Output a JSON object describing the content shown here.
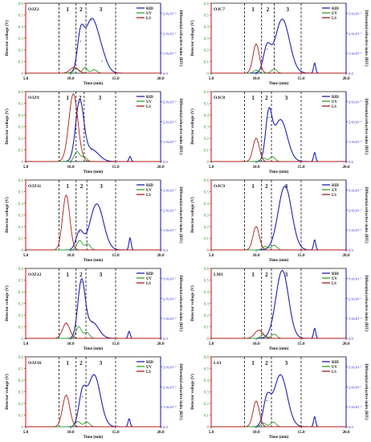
{
  "chart_data": [
    {
      "type": "line",
      "title": "OJZ2",
      "xlabel": "Time (min)",
      "ylabel_left": "Detector voltage (V)",
      "ylabel_right": "Differential refractive index (RIU)",
      "xlim": [
        5,
        20
      ],
      "ylim_left": [
        0,
        0.6
      ],
      "ylim_right": [
        0,
        3.5e-07
      ],
      "x_ticks": [
        "5.0",
        "10.0",
        "15.0",
        "20.0"
      ],
      "y_ticks_left": [
        "0",
        "0.1",
        "0.2",
        "0.3",
        "0.4",
        "0.5",
        "0.6"
      ],
      "y_ticks_right": [
        "0.0",
        "1.0x10⁻⁷",
        "2.0x10⁻⁷",
        "3.0x10⁻⁷"
      ],
      "regions": [
        "1",
        "2",
        "3"
      ],
      "region_boundaries": [
        8.7,
        10.6,
        11.7,
        15.0
      ],
      "legend": [
        "RID",
        "UV",
        "LS"
      ],
      "colors": {
        "RID": "#1f1fb4",
        "UV": "#2ea02e",
        "LS": "#b01818"
      },
      "series": [
        {
          "name": "RID",
          "peaks": [
            {
              "x": 11.1,
              "h": 1.6e-07,
              "w": 0.35
            },
            {
              "x": 12.3,
              "h": 2.65e-07,
              "w": 0.75
            },
            {
              "x": 13.5,
              "h": 6e-08,
              "w": 0.6
            }
          ]
        },
        {
          "name": "UV",
          "peaks": [
            {
              "x": 10.6,
              "h": 0.045,
              "w": 0.25
            },
            {
              "x": 11.6,
              "h": 0.05,
              "w": 0.25
            },
            {
              "x": 12.6,
              "h": 0.03,
              "w": 0.3
            }
          ]
        },
        {
          "name": "LS",
          "peaks": [
            {
              "x": 10.4,
              "h": 0.05,
              "w": 0.45
            }
          ]
        }
      ]
    },
    {
      "type": "line",
      "title": "OJC7",
      "xlabel": "Time (min)",
      "ylabel_left": "Detector voltage (V)",
      "ylabel_right": "Differential refractive index (RIU)",
      "xlim": [
        5,
        20
      ],
      "ylim_left": [
        0,
        0.6
      ],
      "ylim_right": [
        0,
        3.5e-07
      ],
      "x_ticks": [
        "5.0",
        "10.0",
        "15.0",
        "20.0"
      ],
      "y_ticks_left": [
        "0",
        "0.1",
        "0.2",
        "0.3",
        "0.4",
        "0.5",
        "0.6"
      ],
      "y_ticks_right": [
        "0.0",
        "1.0x10⁻⁷",
        "2.0x10⁻⁷",
        "3.0x10⁻⁷"
      ],
      "regions": [
        "1",
        "2",
        "3"
      ],
      "region_boundaries": [
        8.7,
        10.6,
        12.0,
        15.0
      ],
      "legend": [
        "RID",
        "UV",
        "LS"
      ],
      "colors": {
        "RID": "#1f1fb4",
        "UV": "#2ea02e",
        "LS": "#b01818"
      },
      "series": [
        {
          "name": "RID",
          "peaks": [
            {
              "x": 11.2,
              "h": 1.2e-07,
              "w": 0.4
            },
            {
              "x": 12.9,
              "h": 2.7e-07,
              "w": 0.8
            },
            {
              "x": 16.5,
              "h": 5e-08,
              "w": 0.12
            }
          ]
        },
        {
          "name": "UV",
          "peaks": [
            {
              "x": 10.0,
              "h": 0.025,
              "w": 0.3
            },
            {
              "x": 12.0,
              "h": 0.035,
              "w": 0.3
            }
          ]
        },
        {
          "name": "LS",
          "peaks": [
            {
              "x": 10.0,
              "h": 0.25,
              "w": 0.35
            }
          ]
        }
      ]
    },
    {
      "type": "line",
      "title": "OJZ9",
      "xlabel": "Time (min)",
      "ylabel_left": "Detector voltage (V)",
      "ylabel_right": "Differential refractive index (RIU)",
      "xlim": [
        5,
        20
      ],
      "ylim_left": [
        0,
        0.6
      ],
      "ylim_right": [
        0,
        3.5e-07
      ],
      "x_ticks": [
        "5.0",
        "10.0",
        "15.0",
        "20.0"
      ],
      "y_ticks_left": [
        "0",
        "0.1",
        "0.2",
        "0.3",
        "0.4",
        "0.5",
        "0.6"
      ],
      "y_ticks_right": [
        "0.0",
        "1.0x10⁻⁷",
        "2.0x10⁻⁷",
        "3.0x10⁻⁷"
      ],
      "regions": [
        "1",
        "2",
        "3"
      ],
      "region_boundaries": [
        8.7,
        10.6,
        11.5,
        15.0
      ],
      "legend": [
        "RID",
        "UV",
        "LS"
      ],
      "colors": {
        "RID": "#1f1fb4",
        "UV": "#2ea02e",
        "LS": "#b01818"
      },
      "series": [
        {
          "name": "RID",
          "peaks": [
            {
              "x": 11.0,
              "h": 2.95e-07,
              "w": 0.45
            },
            {
              "x": 12.3,
              "h": 6e-08,
              "w": 0.8
            },
            {
              "x": 16.6,
              "h": 2.5e-08,
              "w": 0.12
            }
          ]
        },
        {
          "name": "UV",
          "peaks": [
            {
              "x": 10.7,
              "h": 0.085,
              "w": 0.3
            },
            {
              "x": 11.5,
              "h": 0.04,
              "w": 0.3
            }
          ]
        },
        {
          "name": "LS",
          "peaks": [
            {
              "x": 10.3,
              "h": 0.58,
              "w": 0.5
            }
          ]
        }
      ]
    },
    {
      "type": "line",
      "title": "OJC8",
      "xlabel": "Time (min)",
      "ylabel_left": "Detector voltage (V)",
      "ylabel_right": "Differential refractive index (RIU)",
      "xlim": [
        5,
        20
      ],
      "ylim_left": [
        0,
        0.6
      ],
      "ylim_right": [
        0,
        3.5e-07
      ],
      "x_ticks": [
        "5.0",
        "10.0",
        "15.0",
        "20.0"
      ],
      "y_ticks_left": [
        "0",
        "0.1",
        "0.2",
        "0.3",
        "0.4",
        "0.5",
        "0.6"
      ],
      "y_ticks_right": [
        "0.0",
        "1.0x10⁻⁷",
        "2.0x10⁻⁷",
        "3.0x10⁻⁷"
      ],
      "regions": [
        "1",
        "2",
        "3"
      ],
      "region_boundaries": [
        8.7,
        10.6,
        11.7,
        15.0
      ],
      "legend": [
        "RID",
        "UV",
        "LS"
      ],
      "colors": {
        "RID": "#1f1fb4",
        "UV": "#2ea02e",
        "LS": "#b01818"
      },
      "series": [
        {
          "name": "RID",
          "peaks": [
            {
              "x": 11.4,
              "h": 2.2e-07,
              "w": 0.35
            },
            {
              "x": 12.7,
              "h": 2.1e-07,
              "w": 0.75
            },
            {
              "x": 16.5,
              "h": 4.5e-08,
              "w": 0.12
            }
          ]
        },
        {
          "name": "UV",
          "peaks": [
            {
              "x": 10.8,
              "h": 0.03,
              "w": 0.3
            },
            {
              "x": 11.8,
              "h": 0.04,
              "w": 0.3
            }
          ]
        },
        {
          "name": "LS",
          "peaks": [
            {
              "x": 10.0,
              "h": 0.2,
              "w": 0.35
            }
          ]
        }
      ]
    },
    {
      "type": "line",
      "title": "OJZ11",
      "xlabel": "Time (min)",
      "ylabel_left": "Detector voltage (V)",
      "ylabel_right": "Differential refractive index (RIU)",
      "xlim": [
        5,
        20
      ],
      "ylim_left": [
        0,
        0.6
      ],
      "ylim_right": [
        0,
        3.5e-07
      ],
      "x_ticks": [
        "5.0",
        "10.0",
        "15.0",
        "20.0"
      ],
      "y_ticks_left": [
        "0",
        "0.1",
        "0.2",
        "0.3",
        "0.4",
        "0.5",
        "0.6"
      ],
      "y_ticks_right": [
        "0.0",
        "1.0x10⁻⁷",
        "2.0x10⁻⁷",
        "3.0x10⁻⁷"
      ],
      "regions": [
        "1",
        "2",
        "3"
      ],
      "region_boundaries": [
        8.7,
        10.6,
        11.8,
        15.0
      ],
      "legend": [
        "RID",
        "UV",
        "LS"
      ],
      "colors": {
        "RID": "#1f1fb4",
        "UV": "#2ea02e",
        "LS": "#b01818"
      },
      "series": [
        {
          "name": "RID",
          "peaks": [
            {
              "x": 11.0,
              "h": 9e-08,
              "w": 0.4
            },
            {
              "x": 12.9,
              "h": 2.3e-07,
              "w": 0.75
            },
            {
              "x": 16.6,
              "h": 6e-08,
              "w": 0.12
            }
          ]
        },
        {
          "name": "UV",
          "peaks": [
            {
              "x": 11.0,
              "h": 0.08,
              "w": 0.3
            },
            {
              "x": 11.9,
              "h": 0.05,
              "w": 0.3
            }
          ]
        },
        {
          "name": "LS",
          "peaks": [
            {
              "x": 9.5,
              "h": 0.47,
              "w": 0.4
            }
          ]
        }
      ]
    },
    {
      "type": "line",
      "title": "OJC9",
      "xlabel": "Time (min)",
      "ylabel_left": "Detector voltage (V)",
      "ylabel_right": "Differential refractive index (RIU)",
      "xlim": [
        5,
        20
      ],
      "ylim_left": [
        0,
        0.6
      ],
      "ylim_right": [
        0,
        3.5e-07
      ],
      "x_ticks": [
        "5.0",
        "10.0",
        "15.0",
        "20.0"
      ],
      "y_ticks_left": [
        "0",
        "0.1",
        "0.2",
        "0.3",
        "0.4",
        "0.5",
        "0.6"
      ],
      "y_ticks_right": [
        "0.0",
        "1.0x10⁻⁷",
        "2.0x10⁻⁷",
        "3.0x10⁻⁷"
      ],
      "regions": [
        "1",
        "2",
        "3"
      ],
      "region_boundaries": [
        8.7,
        10.6,
        11.7,
        15.0
      ],
      "legend": [
        "RID",
        "UV",
        "LS"
      ],
      "colors": {
        "RID": "#1f1fb4",
        "UV": "#2ea02e",
        "LS": "#b01818"
      },
      "series": [
        {
          "name": "RID",
          "peaks": [
            {
              "x": 13.2,
              "h": 3.2e-07,
              "w": 0.75
            },
            {
              "x": 16.5,
              "h": 5e-08,
              "w": 0.12
            }
          ]
        },
        {
          "name": "UV",
          "peaks": [
            {
              "x": 11.0,
              "h": 0.03,
              "w": 0.3
            },
            {
              "x": 12.0,
              "h": 0.04,
              "w": 0.3
            }
          ]
        },
        {
          "name": "LS",
          "peaks": [
            {
              "x": 10.0,
              "h": 0.2,
              "w": 0.35
            }
          ]
        }
      ]
    },
    {
      "type": "line",
      "title": "OJZ12",
      "xlabel": "Time (min)",
      "ylabel_left": "Detector voltage (V)",
      "ylabel_right": "Differential refractive index (RIU)",
      "xlim": [
        5,
        20
      ],
      "ylim_left": [
        0,
        0.6
      ],
      "ylim_right": [
        0,
        3.5e-07
      ],
      "x_ticks": [
        "5.0",
        "10.0",
        "15.0",
        "20.0"
      ],
      "y_ticks_left": [
        "0",
        "0.1",
        "0.2",
        "0.3",
        "0.4",
        "0.5",
        "0.6"
      ],
      "y_ticks_right": [
        "0.0",
        "1.0x10⁻⁷",
        "2.0x10⁻⁷",
        "3.0x10⁻⁷"
      ],
      "regions": [
        "1",
        "2",
        "3"
      ],
      "region_boundaries": [
        8.7,
        10.6,
        11.7,
        15.0
      ],
      "legend": [
        "RID",
        "UV",
        "LS"
      ],
      "colors": {
        "RID": "#1f1fb4",
        "UV": "#2ea02e",
        "LS": "#b01818"
      },
      "series": [
        {
          "name": "RID",
          "peaks": [
            {
              "x": 11.2,
              "h": 2.8e-07,
              "w": 0.4
            },
            {
              "x": 12.4,
              "h": 8e-08,
              "w": 0.7
            },
            {
              "x": 16.5,
              "h": 3.5e-08,
              "w": 0.12
            }
          ]
        },
        {
          "name": "UV",
          "peaks": [
            {
              "x": 10.9,
              "h": 0.1,
              "w": 0.3
            },
            {
              "x": 11.8,
              "h": 0.05,
              "w": 0.3
            }
          ]
        },
        {
          "name": "LS",
          "peaks": [
            {
              "x": 9.5,
              "h": 0.13,
              "w": 0.4
            }
          ]
        }
      ]
    },
    {
      "type": "line",
      "title": "LM1",
      "xlabel": "Time (min)",
      "ylabel_left": "Detector voltage (V)",
      "ylabel_right": "Differential refractive index (RIU)",
      "xlim": [
        5,
        20
      ],
      "ylim_left": [
        0,
        0.6
      ],
      "ylim_right": [
        0,
        3.5e-07
      ],
      "x_ticks": [
        "5.0",
        "10.0",
        "15.0",
        "20.0"
      ],
      "y_ticks_left": [
        "0",
        "0.1",
        "0.2",
        "0.3",
        "0.4",
        "0.5",
        "0.6"
      ],
      "y_ticks_right": [
        "0.0",
        "1.0x10⁻⁷",
        "2.0x10⁻⁷",
        "3.0x10⁻⁷"
      ],
      "regions": [
        "1",
        "2",
        "3"
      ],
      "region_boundaries": [
        8.7,
        10.6,
        11.7,
        15.0
      ],
      "legend": [
        "RID",
        "UV",
        "LS"
      ],
      "colors": {
        "RID": "#1f1fb4",
        "UV": "#2ea02e",
        "LS": "#b01818"
      },
      "series": [
        {
          "name": "RID",
          "peaks": [
            {
              "x": 12.9,
              "h": 3.4e-07,
              "w": 0.7
            },
            {
              "x": 16.5,
              "h": 5e-08,
              "w": 0.12
            }
          ]
        },
        {
          "name": "UV",
          "peaks": [
            {
              "x": 10.8,
              "h": 0.03,
              "w": 0.3
            },
            {
              "x": 12.0,
              "h": 0.035,
              "w": 0.3
            }
          ]
        },
        {
          "name": "LS",
          "peaks": [
            {
              "x": 10.3,
              "h": 0.07,
              "w": 0.45
            }
          ]
        }
      ]
    },
    {
      "type": "line",
      "title": "OJZ16",
      "xlabel": "Time (min)",
      "ylabel_left": "Detector voltage (V)",
      "ylabel_right": "Differential refractive index (RIU)",
      "xlim": [
        5,
        20
      ],
      "ylim_left": [
        0,
        0.6
      ],
      "ylim_right": [
        0,
        3.5e-07
      ],
      "x_ticks": [
        "5.0",
        "10.0",
        "15.0",
        "20.0"
      ],
      "y_ticks_left": [
        "0",
        "0.1",
        "0.2",
        "0.3",
        "0.4",
        "0.5",
        "0.6"
      ],
      "y_ticks_right": [
        "0.0",
        "1.0x10⁻⁷",
        "2.0x10⁻⁷",
        "3.0x10⁻⁷"
      ],
      "regions": [
        "1",
        "2",
        "3"
      ],
      "region_boundaries": [
        8.7,
        10.6,
        11.7,
        15.0
      ],
      "legend": [
        "RID",
        "UV",
        "LS"
      ],
      "colors": {
        "RID": "#1f1fb4",
        "UV": "#2ea02e",
        "LS": "#b01818"
      },
      "series": [
        {
          "name": "RID",
          "peaks": [
            {
              "x": 11.3,
              "h": 1.5e-07,
              "w": 0.4
            },
            {
              "x": 12.6,
              "h": 2.6e-07,
              "w": 0.7
            },
            {
              "x": 16.5,
              "h": 4e-08,
              "w": 0.12
            }
          ]
        },
        {
          "name": "UV",
          "peaks": [
            {
              "x": 10.8,
              "h": 0.045,
              "w": 0.3
            },
            {
              "x": 11.8,
              "h": 0.04,
              "w": 0.3
            }
          ]
        },
        {
          "name": "LS",
          "peaks": [
            {
              "x": 9.5,
              "h": 0.27,
              "w": 0.4
            }
          ]
        }
      ]
    },
    {
      "type": "line",
      "title": "LS1",
      "xlabel": "Time (min)",
      "ylabel_left": "Detector voltage (V)",
      "ylabel_right": "Differential refractive index (RIU)",
      "xlim": [
        5,
        20
      ],
      "ylim_left": [
        0,
        0.6
      ],
      "ylim_right": [
        0,
        3.5e-07
      ],
      "x_ticks": [
        "5.0",
        "10.0",
        "15.0",
        "20.0"
      ],
      "y_ticks_left": [
        "0",
        "0.1",
        "0.2",
        "0.3",
        "0.4",
        "0.5",
        "0.6"
      ],
      "y_ticks_right": [
        "0.0",
        "1.0x10⁻⁷",
        "2.0x10⁻⁷",
        "3.0x10⁻⁷"
      ],
      "regions": [
        "1",
        "2",
        "3"
      ],
      "region_boundaries": [
        8.7,
        10.6,
        11.7,
        15.0
      ],
      "legend": [
        "RID",
        "UV",
        "LS"
      ],
      "colors": {
        "RID": "#1f1fb4",
        "UV": "#2ea02e",
        "LS": "#b01818"
      },
      "series": [
        {
          "name": "RID",
          "peaks": [
            {
              "x": 11.2,
              "h": 1.3e-07,
              "w": 0.4
            },
            {
              "x": 12.7,
              "h": 2.6e-07,
              "w": 0.75
            },
            {
              "x": 16.5,
              "h": 5e-08,
              "w": 0.12
            }
          ]
        },
        {
          "name": "UV",
          "peaks": [
            {
              "x": 10.8,
              "h": 0.03,
              "w": 0.3
            },
            {
              "x": 11.9,
              "h": 0.04,
              "w": 0.3
            }
          ]
        },
        {
          "name": "LS",
          "peaks": [
            {
              "x": 10.0,
              "h": 0.22,
              "w": 0.35
            }
          ]
        }
      ]
    }
  ]
}
